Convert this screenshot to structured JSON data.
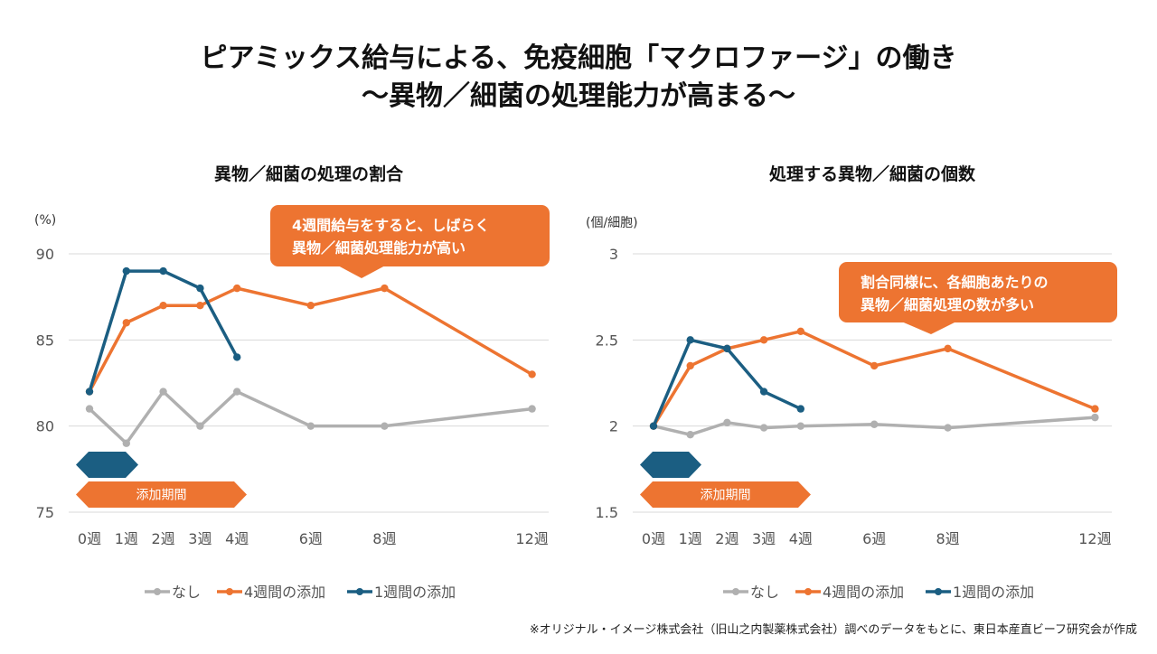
{
  "title": {
    "line1": "ピアミックス給与による、免疫細胞「マクロファージ」の働き",
    "line2": "～異物／細菌の処理能力が高まる～"
  },
  "colors": {
    "none": "#b0b0b0",
    "four_week": "#ed7431",
    "one_week": "#1b5e82",
    "grid": "#d9d9d9"
  },
  "footnote": "※オリジナル・イメージ株式会社（旧山之内製薬株式会社）調べのデータをもとに、東日本産直ビーフ研究会が作成",
  "chart_data": [
    {
      "type": "line",
      "title": "異物／細菌の処理の割合",
      "ylabel": "(%)",
      "xlabel": "",
      "x": [
        0,
        1,
        2,
        3,
        4,
        6,
        8,
        12
      ],
      "x_tick_labels": [
        "0週",
        "1週",
        "2週",
        "3週",
        "4週",
        "6週",
        "8週",
        "12週"
      ],
      "ylim": [
        75,
        90
      ],
      "y_ticks": [
        75,
        80,
        85,
        90
      ],
      "y_tick_labels": [
        "75",
        "80",
        "85",
        "90"
      ],
      "grid": true,
      "legend_position": "bottom",
      "series": [
        {
          "name": "なし",
          "key": "none",
          "x": [
            0,
            1,
            2,
            3,
            4,
            6,
            8,
            12
          ],
          "values": [
            81,
            79,
            82,
            80,
            82,
            80,
            80,
            81
          ]
        },
        {
          "name": "4週間の添加",
          "key": "four_week",
          "x": [
            0,
            1,
            2,
            3,
            4,
            6,
            8,
            12
          ],
          "values": [
            82,
            86,
            87,
            87,
            88,
            87,
            88,
            83
          ]
        },
        {
          "name": "1週間の添加",
          "key": "one_week",
          "x": [
            0,
            1,
            2,
            3,
            4
          ],
          "values": [
            82,
            89,
            89,
            88,
            84
          ]
        }
      ],
      "annotation": {
        "line1": "4週間給与をすると、しばらく",
        "line2": "異物／細菌処理能力が高い"
      },
      "period_band": {
        "label": "添加期間",
        "one_week_end": 1,
        "four_week_end": 4
      }
    },
    {
      "type": "line",
      "title": "処理する異物／細菌の個数",
      "ylabel": "(個/細胞)",
      "xlabel": "",
      "x": [
        0,
        1,
        2,
        3,
        4,
        6,
        8,
        12
      ],
      "x_tick_labels": [
        "0週",
        "1週",
        "2週",
        "3週",
        "4週",
        "6週",
        "8週",
        "12週"
      ],
      "ylim": [
        1.5,
        3
      ],
      "y_ticks": [
        1.5,
        2,
        2.5,
        3
      ],
      "y_tick_labels": [
        "1.5",
        "2",
        "2.5",
        "3"
      ],
      "grid": true,
      "legend_position": "bottom",
      "series": [
        {
          "name": "なし",
          "key": "none",
          "x": [
            0,
            1,
            2,
            3,
            4,
            6,
            8,
            12
          ],
          "values": [
            2.0,
            1.95,
            2.02,
            1.99,
            2.0,
            2.01,
            1.99,
            2.05
          ]
        },
        {
          "name": "4週間の添加",
          "key": "four_week",
          "x": [
            0,
            1,
            2,
            3,
            4,
            6,
            8,
            12
          ],
          "values": [
            2.0,
            2.35,
            2.45,
            2.5,
            2.55,
            2.35,
            2.45,
            2.1
          ]
        },
        {
          "name": "1週間の添加",
          "key": "one_week",
          "x": [
            0,
            1,
            2,
            3,
            4
          ],
          "values": [
            2.0,
            2.5,
            2.45,
            2.2,
            2.1
          ]
        }
      ],
      "annotation": {
        "line1": "割合同様に、各細胞あたりの",
        "line2": "異物／細菌処理の数が多い"
      },
      "period_band": {
        "label": "添加期間",
        "one_week_end": 1,
        "four_week_end": 4
      }
    }
  ]
}
